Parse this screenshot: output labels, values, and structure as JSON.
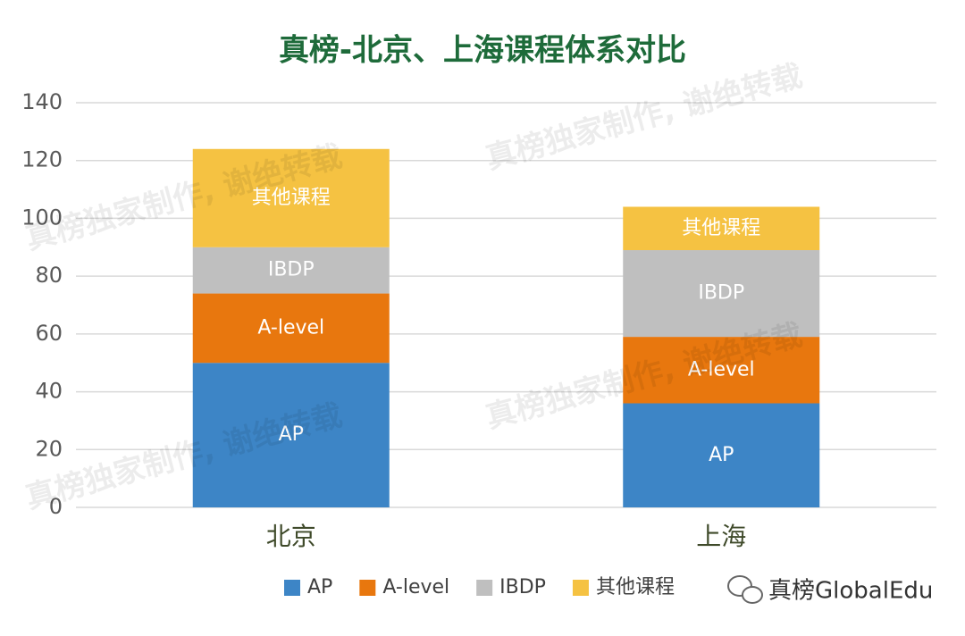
{
  "chart_data": {
    "type": "bar",
    "stacked": true,
    "title": "真榜-北京、上海课程体系对比",
    "categories": [
      "北京",
      "上海"
    ],
    "series": [
      {
        "name": "AP",
        "color": "#3d85c6",
        "values": [
          50,
          36
        ]
      },
      {
        "name": "A-level",
        "color": "#e8770e",
        "values": [
          24,
          23
        ]
      },
      {
        "name": "IBDP",
        "color": "#bfbfbf",
        "values": [
          16,
          30
        ]
      },
      {
        "name": "其他课程",
        "color": "#f5c242",
        "values": [
          34,
          15
        ]
      }
    ],
    "ylim": [
      0,
      140
    ],
    "yticks": [
      0,
      20,
      40,
      60,
      80,
      100,
      120,
      140
    ],
    "grid": true,
    "legend": "bottom",
    "watermark": "真榜独家制作, 谢绝转载",
    "brand": "真榜GlobalEdu"
  }
}
